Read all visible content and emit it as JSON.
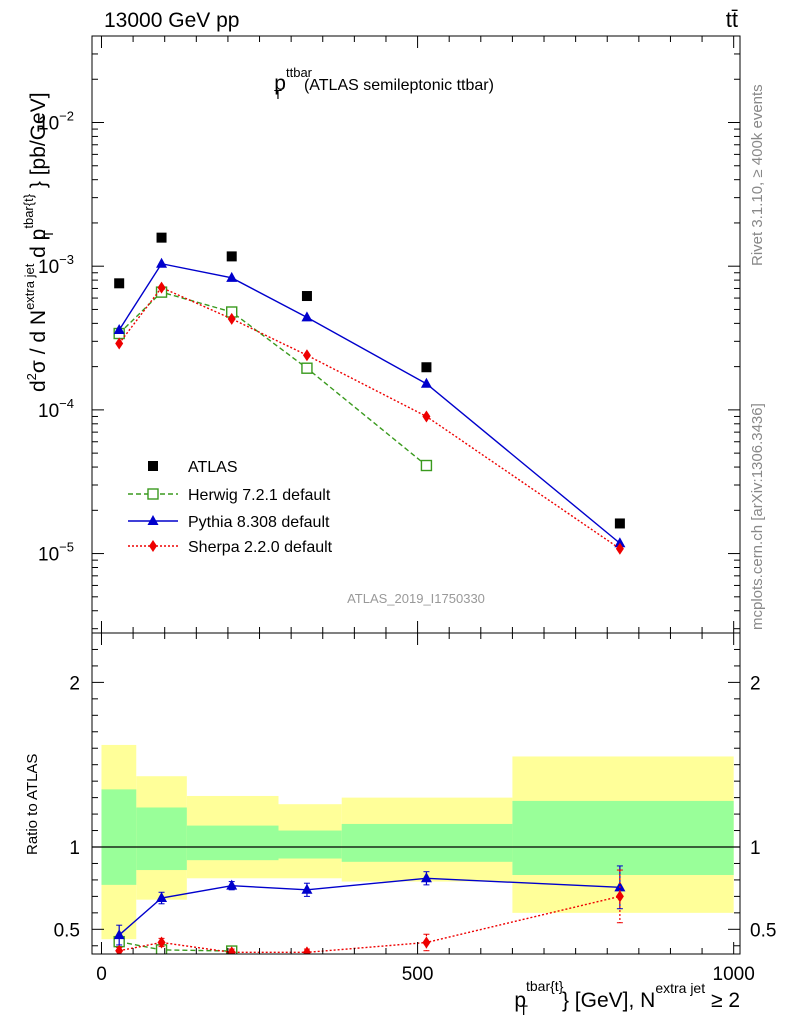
{
  "header": {
    "left": "13000 GeV pp",
    "right": "tt̄"
  },
  "side_text": {
    "rivet": "Rivet 3.1.10, ≥ 400k events",
    "mcplots": "mcplots.cern.ch [arXiv:1306.3436]"
  },
  "chart_data": [
    {
      "type": "scatter",
      "panel": "main",
      "title_main": "p",
      "title_sup": "ttbar",
      "title_sub": "T",
      "title_rest": "(ATLAS semileptonic ttbar)",
      "ylabel": "d²σ / d N^{extra jet} d p_T^{tbar{t}} [pb/GeV]",
      "yscale": "log",
      "ylim": [
        2.8e-06,
        0.04
      ],
      "xlim": [
        -15,
        1010
      ],
      "y_ticks": [
        {
          "value": 0.01,
          "base": "10",
          "exp": "−2"
        },
        {
          "value": 0.001,
          "base": "10",
          "exp": "−3"
        },
        {
          "value": 0.0001,
          "base": "10",
          "exp": "−4"
        },
        {
          "value": 1e-05,
          "base": "10",
          "exp": "−5"
        }
      ],
      "watermark": "ATLAS_2019_I1750330",
      "legend_position": "bottom-left",
      "series": [
        {
          "name": "ATLAS",
          "color": "#000000",
          "marker": "square",
          "line": "none",
          "x": [
            28,
            95,
            206,
            325,
            514,
            820
          ],
          "y": [
            0.00076,
            0.00158,
            0.00117,
            0.00062,
            0.000198,
            1.62e-05
          ]
        },
        {
          "name": "Herwig 7.2.1 default",
          "color": "#3a9a1e",
          "marker": "open-square",
          "line": "dashed",
          "x": [
            28,
            95,
            206,
            325,
            514
          ],
          "y": [
            0.00034,
            0.00066,
            0.00048,
            0.000195,
            4.1e-05
          ]
        },
        {
          "name": "Pythia 8.308 default",
          "color": "#0000cc",
          "marker": "triangle",
          "line": "solid",
          "x": [
            28,
            95,
            206,
            325,
            514,
            820
          ],
          "y": [
            0.00036,
            0.00104,
            0.00083,
            0.00044,
            0.000152,
            1.18e-05
          ]
        },
        {
          "name": "Sherpa 2.2.0 default",
          "color": "#ee0000",
          "marker": "diamond",
          "line": "dotted",
          "x": [
            28,
            95,
            206,
            325,
            514,
            820
          ],
          "y": [
            0.00029,
            0.00071,
            0.00043,
            0.00024,
            9e-05,
            1.08e-05
          ]
        }
      ]
    },
    {
      "type": "scatter",
      "panel": "ratio",
      "ylabel": "Ratio to ATLAS",
      "xlabel": "p_T^{tbar{t}} [GeV], N^{extra jet} ≥ 2",
      "ylim": [
        0.35,
        2.3
      ],
      "xlim": [
        -15,
        1010
      ],
      "y_ticks": [
        0.5,
        1,
        2
      ],
      "y_tick_labels": [
        "0.5",
        "1",
        "2"
      ],
      "x_ticks": [
        0,
        500,
        1000
      ],
      "x_tick_labels": [
        "0",
        "500",
        "1000"
      ],
      "bands": [
        {
          "x0": 0,
          "x1": 55,
          "y1_lo": 0.77,
          "y1_hi": 1.35,
          "y2_lo": 0.44,
          "y2_hi": 1.62
        },
        {
          "x0": 55,
          "x1": 135,
          "y1_lo": 0.86,
          "y1_hi": 1.24,
          "y2_lo": 0.68,
          "y2_hi": 1.43
        },
        {
          "x0": 135,
          "x1": 280,
          "y1_lo": 0.92,
          "y1_hi": 1.13,
          "y2_lo": 0.81,
          "y2_hi": 1.31
        },
        {
          "x0": 280,
          "x1": 380,
          "y1_lo": 0.93,
          "y1_hi": 1.1,
          "y2_lo": 0.81,
          "y2_hi": 1.26
        },
        {
          "x0": 380,
          "x1": 650,
          "y1_lo": 0.91,
          "y1_hi": 1.14,
          "y2_lo": 0.79,
          "y2_hi": 1.3
        },
        {
          "x0": 650,
          "x1": 1000,
          "y1_lo": 0.83,
          "y1_hi": 1.28,
          "y2_lo": 0.6,
          "y2_hi": 1.55
        }
      ],
      "series": [
        {
          "name": "Herwig 7.2.1 default",
          "color": "#3a9a1e",
          "marker": "open-square",
          "line": "dashed",
          "x": [
            28,
            95,
            206
          ],
          "y": [
            0.425,
            0.375,
            0.368
          ],
          "err": [
            0.035,
            0.02,
            0.015
          ]
        },
        {
          "name": "Pythia 8.308 default",
          "color": "#0000cc",
          "marker": "triangle",
          "line": "solid",
          "x": [
            28,
            95,
            206,
            325,
            514,
            820
          ],
          "y": [
            0.465,
            0.69,
            0.765,
            0.74,
            0.81,
            0.755
          ],
          "err": [
            0.06,
            0.035,
            0.025,
            0.04,
            0.04,
            0.13
          ]
        },
        {
          "name": "Sherpa 2.2.0 default",
          "color": "#ee0000",
          "marker": "diamond",
          "line": "dotted",
          "x": [
            28,
            95,
            206,
            325,
            514,
            820
          ],
          "y": [
            0.37,
            0.42,
            0.36,
            0.36,
            0.42,
            0.7
          ],
          "err": [
            0.02,
            0.025,
            0.02,
            0.02,
            0.05,
            0.16
          ]
        }
      ]
    }
  ]
}
